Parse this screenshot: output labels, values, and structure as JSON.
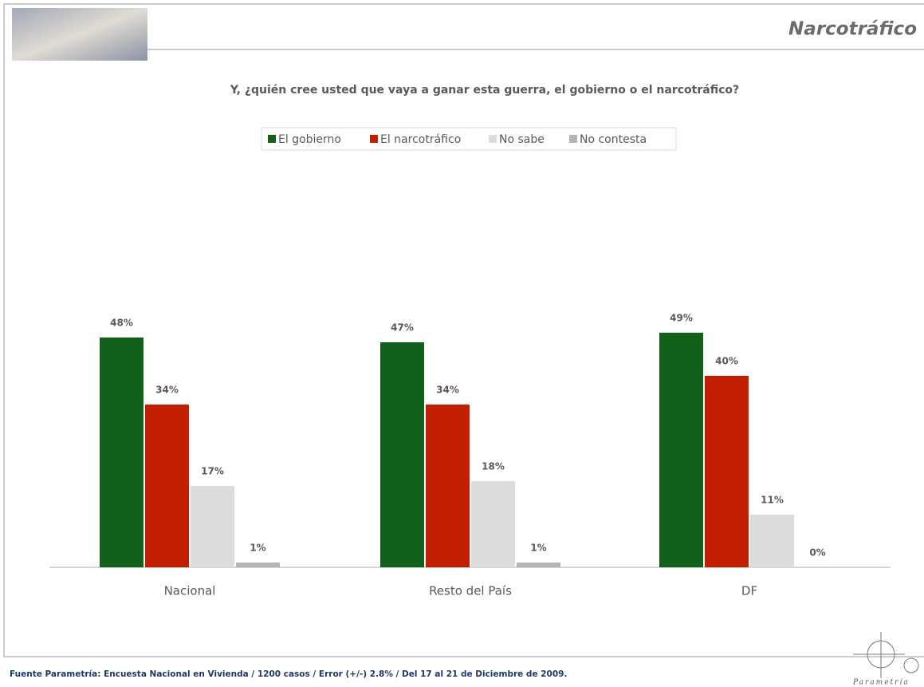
{
  "header": {
    "title": "Narcotráfico"
  },
  "chart_data": {
    "type": "bar",
    "title": "Y, ¿quién cree usted que vaya a ganar esta guerra, el gobierno o el narcotráfico?",
    "categories": [
      "Nacional",
      "Resto del País",
      "DF"
    ],
    "series": [
      {
        "name": "El gobierno",
        "color": "#13601a",
        "values": [
          48,
          47,
          49
        ],
        "value_labels": [
          "48%",
          "47%",
          "49%"
        ]
      },
      {
        "name": "El narcotráfico",
        "color": "#c21f00",
        "values": [
          34,
          34,
          40
        ],
        "value_labels": [
          "34%",
          "34%",
          "40%"
        ]
      },
      {
        "name": "No sabe",
        "color": "#dcdcdc",
        "values": [
          17,
          18,
          11
        ],
        "value_labels": [
          "17%",
          "18%",
          "11%"
        ]
      },
      {
        "name": "No contesta",
        "color": "#b4b4b4",
        "values": [
          1,
          1,
          0
        ],
        "value_labels": [
          "1%",
          "1%",
          "0%"
        ]
      }
    ],
    "legend": "top"
  },
  "footer": {
    "source": "Fuente Parametría: Encuesta Nacional en Vivienda / 1200 casos / Error (+/-) 2.8% / Del 17 al 21 de Diciembre de 2009.",
    "logo": "Parametría"
  }
}
